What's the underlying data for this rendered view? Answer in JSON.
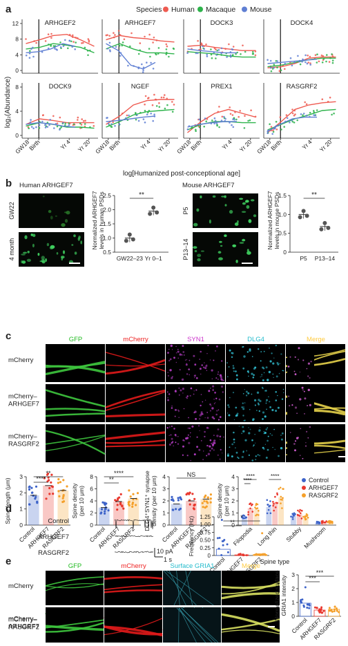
{
  "panels": {
    "a": "a",
    "b": "b",
    "c": "c",
    "d": "d",
    "e": "e"
  },
  "colors": {
    "human": "#ee5a50",
    "macaque": "#2db34b",
    "mouse": "#5f7fd3",
    "control": "#3d63c9",
    "arhgef7": "#e9382e",
    "rasgrf2": "#f5a02a",
    "gfp": "#22bb22",
    "mcherry": "#ee2222",
    "syn1": "#cc33cc",
    "dlg4": "#22bbcc",
    "merge": "#ffcc44"
  },
  "panel_a": {
    "legend_title": "Species",
    "legend_items": [
      "Human",
      "Macaque",
      "Mouse"
    ],
    "ylabel": "log₂(Abundance)",
    "xlabel": "log[Humanized post-conceptional age]",
    "xticks": [
      "GW18",
      "Birth",
      "Yr 4",
      "Yr 20"
    ],
    "yticks_top": [
      "12",
      "8",
      "4",
      "0"
    ],
    "yticks_bottom": [
      "8",
      "4",
      "0"
    ],
    "genes_top": [
      "ARHGEF2",
      "ARHGEF7",
      "DOCK3",
      "DOCK4"
    ],
    "genes_bottom": [
      "DOCK9",
      "NGEF",
      "PREX1",
      "RASGRF2"
    ]
  },
  "panel_b": {
    "human_title": "Human ARHGEF7",
    "mouse_title": "Mouse ARHGEF7",
    "human_rows": [
      "GW22",
      "4 month"
    ],
    "mouse_rows": [
      "P5",
      "P13–14"
    ],
    "human_ylabel": [
      "Normalized ARHGEF7",
      "levels in human PSDs"
    ],
    "mouse_ylabel": [
      "Normalized ARHGEF7",
      "levels in mouse PSDs"
    ],
    "human_yticks": [
      "2.5",
      "2.0",
      "1.5",
      "1.0",
      "0.5"
    ],
    "mouse_yticks": [
      "1.5",
      "1.0",
      "0.5",
      "0"
    ],
    "human_x": [
      "GW22–23",
      "Yr 0–1"
    ],
    "mouse_x": [
      "P5",
      "P13–14"
    ],
    "sig": "**"
  },
  "panel_c": {
    "channels": [
      "GFP",
      "mCherry",
      "SYN1",
      "DLG4",
      "Merge"
    ],
    "rows": [
      "mCherry",
      "mCherry–\nARHGEF7",
      "mCherry–\nRASGRF2"
    ],
    "conditions": [
      "Control",
      "ARHGEF7",
      "RASGRF2"
    ],
    "spine_length_label": "Spine length (μm)",
    "spine_length_yticks": [
      "3",
      "2",
      "1",
      "0"
    ],
    "spine_density_label": [
      "Spine density",
      "(per 10 μm)"
    ],
    "spine_density_yticks": [
      "8",
      "6",
      "4",
      "2",
      "0"
    ],
    "synapse_label": [
      "DLG4⁺SYN1⁺ synapse",
      "density (per 10 μm)"
    ],
    "synapse_yticks": [
      "4",
      "3",
      "2",
      "1",
      "0"
    ],
    "synapse_sig": "NS",
    "types_label": [
      "Spine density",
      "(per 10 μm)"
    ],
    "types_yticks": [
      "4",
      "3",
      "2",
      "1",
      "0"
    ],
    "spine_types": [
      "Filopodia",
      "Long thin",
      "Stubby",
      "Mushroom"
    ],
    "spine_type_xlabel": "Spine type",
    "sig_double": "**",
    "sig_quad": "****"
  },
  "panel_d": {
    "traces": [
      "Control",
      "ARHGEF7",
      "RASGRF2"
    ],
    "scale_y": "10 pA",
    "scale_x": "1 s",
    "ylabel": "Frequency (Hz)",
    "yticks": [
      "1.25",
      "1.00",
      "0.75",
      "0.50",
      "0.25",
      "0"
    ],
    "sig_double": "**",
    "sig_single": "*"
  },
  "panel_e": {
    "channels": [
      "GFP",
      "mCherry",
      "Surface GRIA1",
      "Merge"
    ],
    "rows": [
      "mCherry",
      "mCherry–\nARHGEF7",
      "mCherry–\nRASGRF2"
    ],
    "ylabel": [
      "Normalized surface",
      "GRIA1 intensity"
    ],
    "yticks": [
      "3",
      "2",
      "1",
      "0"
    ],
    "sig": "***"
  },
  "chart_data": [
    {
      "type": "bar",
      "title": "Spine length",
      "categories": [
        "Control",
        "ARHGEF7",
        "RASGRF2"
      ],
      "values": [
        1.85,
        2.45,
        2.15
      ],
      "ylabel": "Spine length (μm)",
      "ylim": [
        0,
        3
      ]
    },
    {
      "type": "bar",
      "title": "Spine density",
      "categories": [
        "Control",
        "ARHGEF7",
        "RASGRF2"
      ],
      "values": [
        2.9,
        3.9,
        4.4
      ],
      "ylabel": "Spine density (per 10 μm)",
      "ylim": [
        0,
        8
      ]
    },
    {
      "type": "bar",
      "categories": [
        "Control",
        "ARHGEF7",
        "RASGRF2"
      ],
      "values": [
        1.75,
        2.0,
        2.15
      ],
      "ylabel": "DLG4+SYN1+ synapse density (per 10 μm)",
      "ylim": [
        0,
        4
      ]
    },
    {
      "type": "bar",
      "categories": [
        "Filopodia",
        "Long thin",
        "Stubby",
        "Mushroom"
      ],
      "series": [
        {
          "name": "Control",
          "values": [
            0.6,
            1.5,
            0.8,
            0.2
          ]
        },
        {
          "name": "ARHGEF7",
          "values": [
            1.4,
            1.9,
            0.9,
            0.25
          ]
        },
        {
          "name": "RASGRF2",
          "values": [
            1.3,
            2.3,
            0.7,
            0.25
          ]
        }
      ],
      "ylabel": "Spine density (per 10 μm)",
      "ylim": [
        0,
        4
      ]
    },
    {
      "type": "bar",
      "categories": [
        "Control",
        "ARHGEF7",
        "RASGRF2"
      ],
      "values": [
        0.2,
        0.02,
        0.03
      ],
      "ylabel": "Frequency (Hz)",
      "ylim": [
        0,
        1.25
      ]
    },
    {
      "type": "bar",
      "categories": [
        "Control",
        "ARHGEF7",
        "RASGRF2"
      ],
      "values": [
        0.95,
        0.45,
        0.5
      ],
      "ylabel": "Normalized surface GRIA1 intensity",
      "ylim": [
        0,
        3
      ]
    },
    {
      "type": "scatter",
      "categories": [
        "GW22–23",
        "Yr 0–1"
      ],
      "series": [
        {
          "values": [
            1.0,
            1.95
          ]
        }
      ],
      "ylabel": "Normalized ARHGEF7 levels in human PSDs"
    },
    {
      "type": "scatter",
      "categories": [
        "P5",
        "P13–14"
      ],
      "series": [
        {
          "values": [
            1.0,
            0.68
          ]
        }
      ],
      "ylabel": "Normalized ARHGEF7 levels in mouse PSDs"
    }
  ]
}
